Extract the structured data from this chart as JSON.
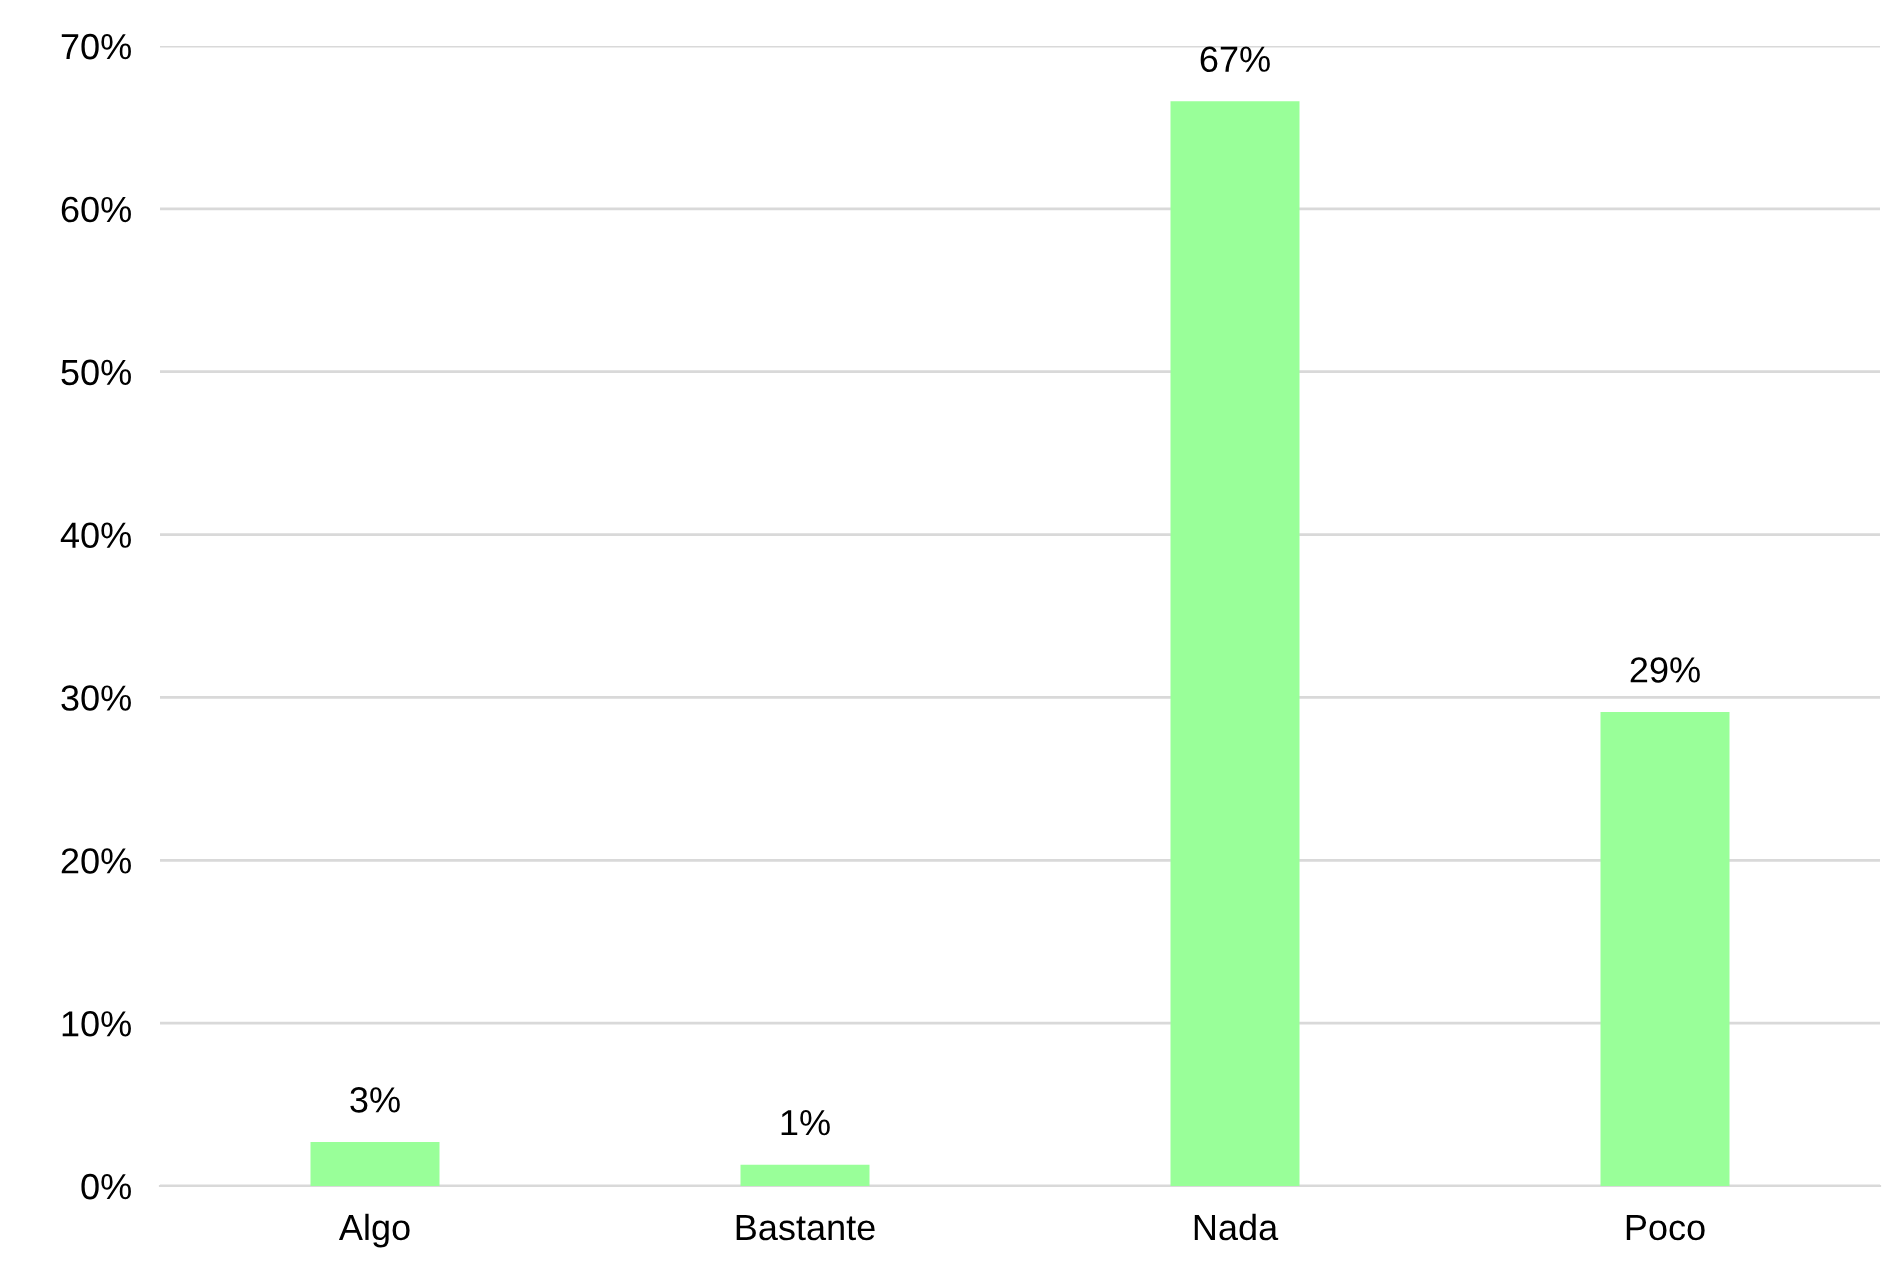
{
  "chart_data": {
    "type": "bar",
    "categories": [
      "Algo",
      "Bastante",
      "Nada",
      "Poco"
    ],
    "values": [
      2.7,
      1.3,
      66.6,
      29.1
    ],
    "value_labels": [
      "3%",
      "1%",
      "67%",
      "29%"
    ],
    "color": "#99ff99",
    "ylim": [
      0,
      70
    ],
    "yticks": [
      {
        "value": 0,
        "label": "0%"
      },
      {
        "value": 10,
        "label": "10%"
      },
      {
        "value": 20,
        "label": "20%"
      },
      {
        "value": 30,
        "label": "30%"
      },
      {
        "value": 40,
        "label": "40%"
      },
      {
        "value": 50,
        "label": "50%"
      },
      {
        "value": 60,
        "label": "60%"
      },
      {
        "value": 70,
        "label": "70%"
      }
    ],
    "grid": "y",
    "legend": false
  }
}
